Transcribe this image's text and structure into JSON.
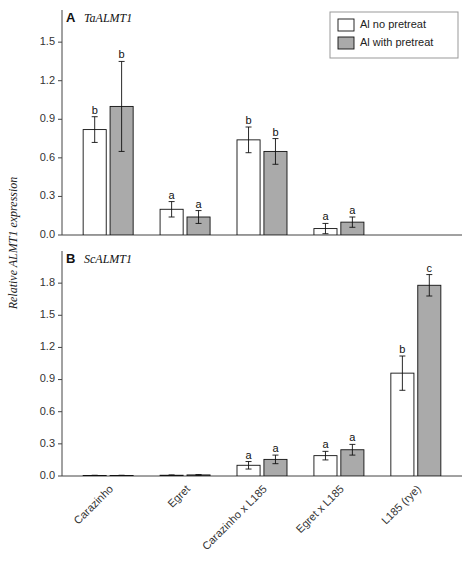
{
  "y_label": "Relative ALMT1 expression",
  "chart_data": [
    {
      "type": "bar",
      "title": "TaALMT1",
      "panel_label": "A",
      "categories": [
        "Carazinho",
        "Egret",
        "Carazinho x L185",
        "Egret x L185",
        "L185 (rye)"
      ],
      "series": [
        {
          "name": "Al no pretreat",
          "color": "#ffffff",
          "values": [
            0.82,
            0.2,
            0.74,
            0.05,
            null
          ],
          "errors": [
            0.1,
            0.06,
            0.1,
            0.04,
            null
          ],
          "letters": [
            "b",
            "a",
            "b",
            "a",
            null
          ]
        },
        {
          "name": "Al with pretreat",
          "color": "#aaaaaa",
          "values": [
            1.0,
            0.14,
            0.65,
            0.1,
            null
          ],
          "errors": [
            0.35,
            0.05,
            0.1,
            0.04,
            null
          ],
          "letters": [
            "b",
            "a",
            "b",
            "a",
            null
          ]
        }
      ],
      "ylim": [
        0,
        1.75
      ],
      "yticks": [
        {
          "value": 0,
          "label": "0.0"
        },
        0.3,
        0.6,
        0.9,
        1.2,
        1.5
      ],
      "legend": "upper right",
      "grid": false,
      "tick_labels": "y"
    },
    {
      "type": "bar",
      "title": "ScALMT1",
      "panel_label": "B",
      "categories": [
        "Carazinho",
        "Egret",
        "Carazinho x L185",
        "Egret x L185",
        "L185 (rye)"
      ],
      "series": [
        {
          "name": "Al no pretreat",
          "color": "#ffffff",
          "values": [
            0.005,
            0.007,
            0.1,
            0.19,
            0.96
          ],
          "errors": [
            0.002,
            0.003,
            0.035,
            0.04,
            0.16
          ],
          "letters": [
            null,
            null,
            "a",
            "a",
            "b"
          ]
        },
        {
          "name": "Al with pretreat",
          "color": "#aaaaaa",
          "values": [
            0.005,
            0.01,
            0.155,
            0.245,
            1.78
          ],
          "errors": [
            0.002,
            0.003,
            0.04,
            0.05,
            0.1
          ],
          "letters": [
            null,
            null,
            "a",
            "a",
            "c"
          ]
        }
      ],
      "ylim": [
        0,
        2.1
      ],
      "yticks": [
        {
          "value": 0,
          "label": "0.0"
        },
        0.3,
        0.6,
        0.9,
        1.2,
        1.5,
        1.8
      ],
      "grid": false
    }
  ]
}
